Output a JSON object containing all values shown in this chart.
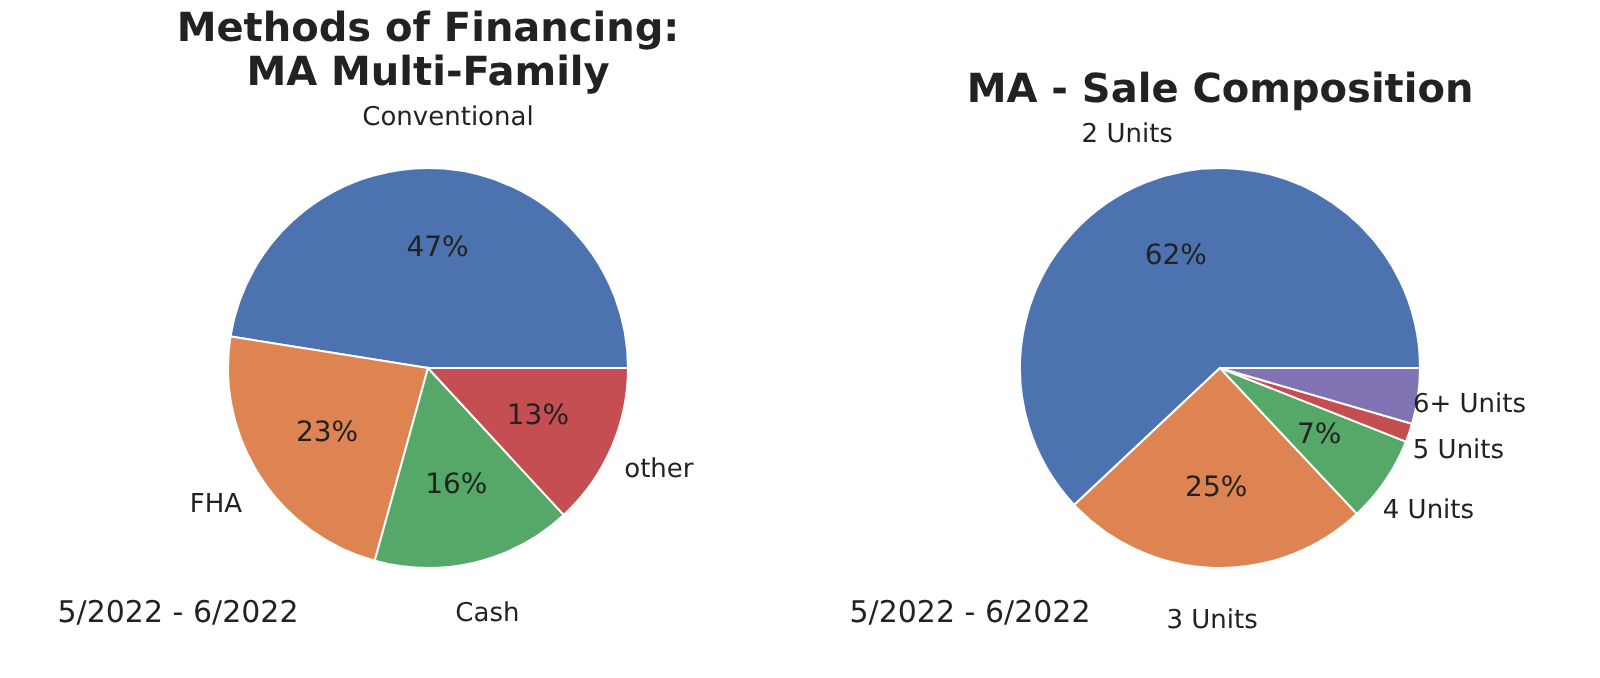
{
  "chart_data": [
    {
      "type": "pie",
      "title": "Methods of Financing:\nMA Multi-Family",
      "categories": [
        "Conventional",
        "FHA",
        "Cash",
        "other"
      ],
      "values": [
        47,
        23,
        16,
        13
      ],
      "value_labels": [
        "47%",
        "23%",
        "16%",
        "13%"
      ],
      "colors": [
        "#4c72b0",
        "#dd8452",
        "#55a868",
        "#c44e52"
      ],
      "annotations": [
        "5/2022 - 6/2022"
      ]
    },
    {
      "type": "pie",
      "title": "MA - Sale Composition",
      "categories": [
        "2 Units",
        "3 Units",
        "4 Units",
        "5 Units",
        "6+ Units"
      ],
      "values": [
        62,
        25,
        7,
        1.5,
        4.5
      ],
      "value_labels": [
        "62%",
        "25%",
        "7%",
        null,
        null
      ],
      "colors": [
        "#4c72b0",
        "#dd8452",
        "#55a868",
        "#c44e52",
        "#8172b3"
      ],
      "annotations": [
        "5/2022 - 6/2022"
      ]
    }
  ]
}
